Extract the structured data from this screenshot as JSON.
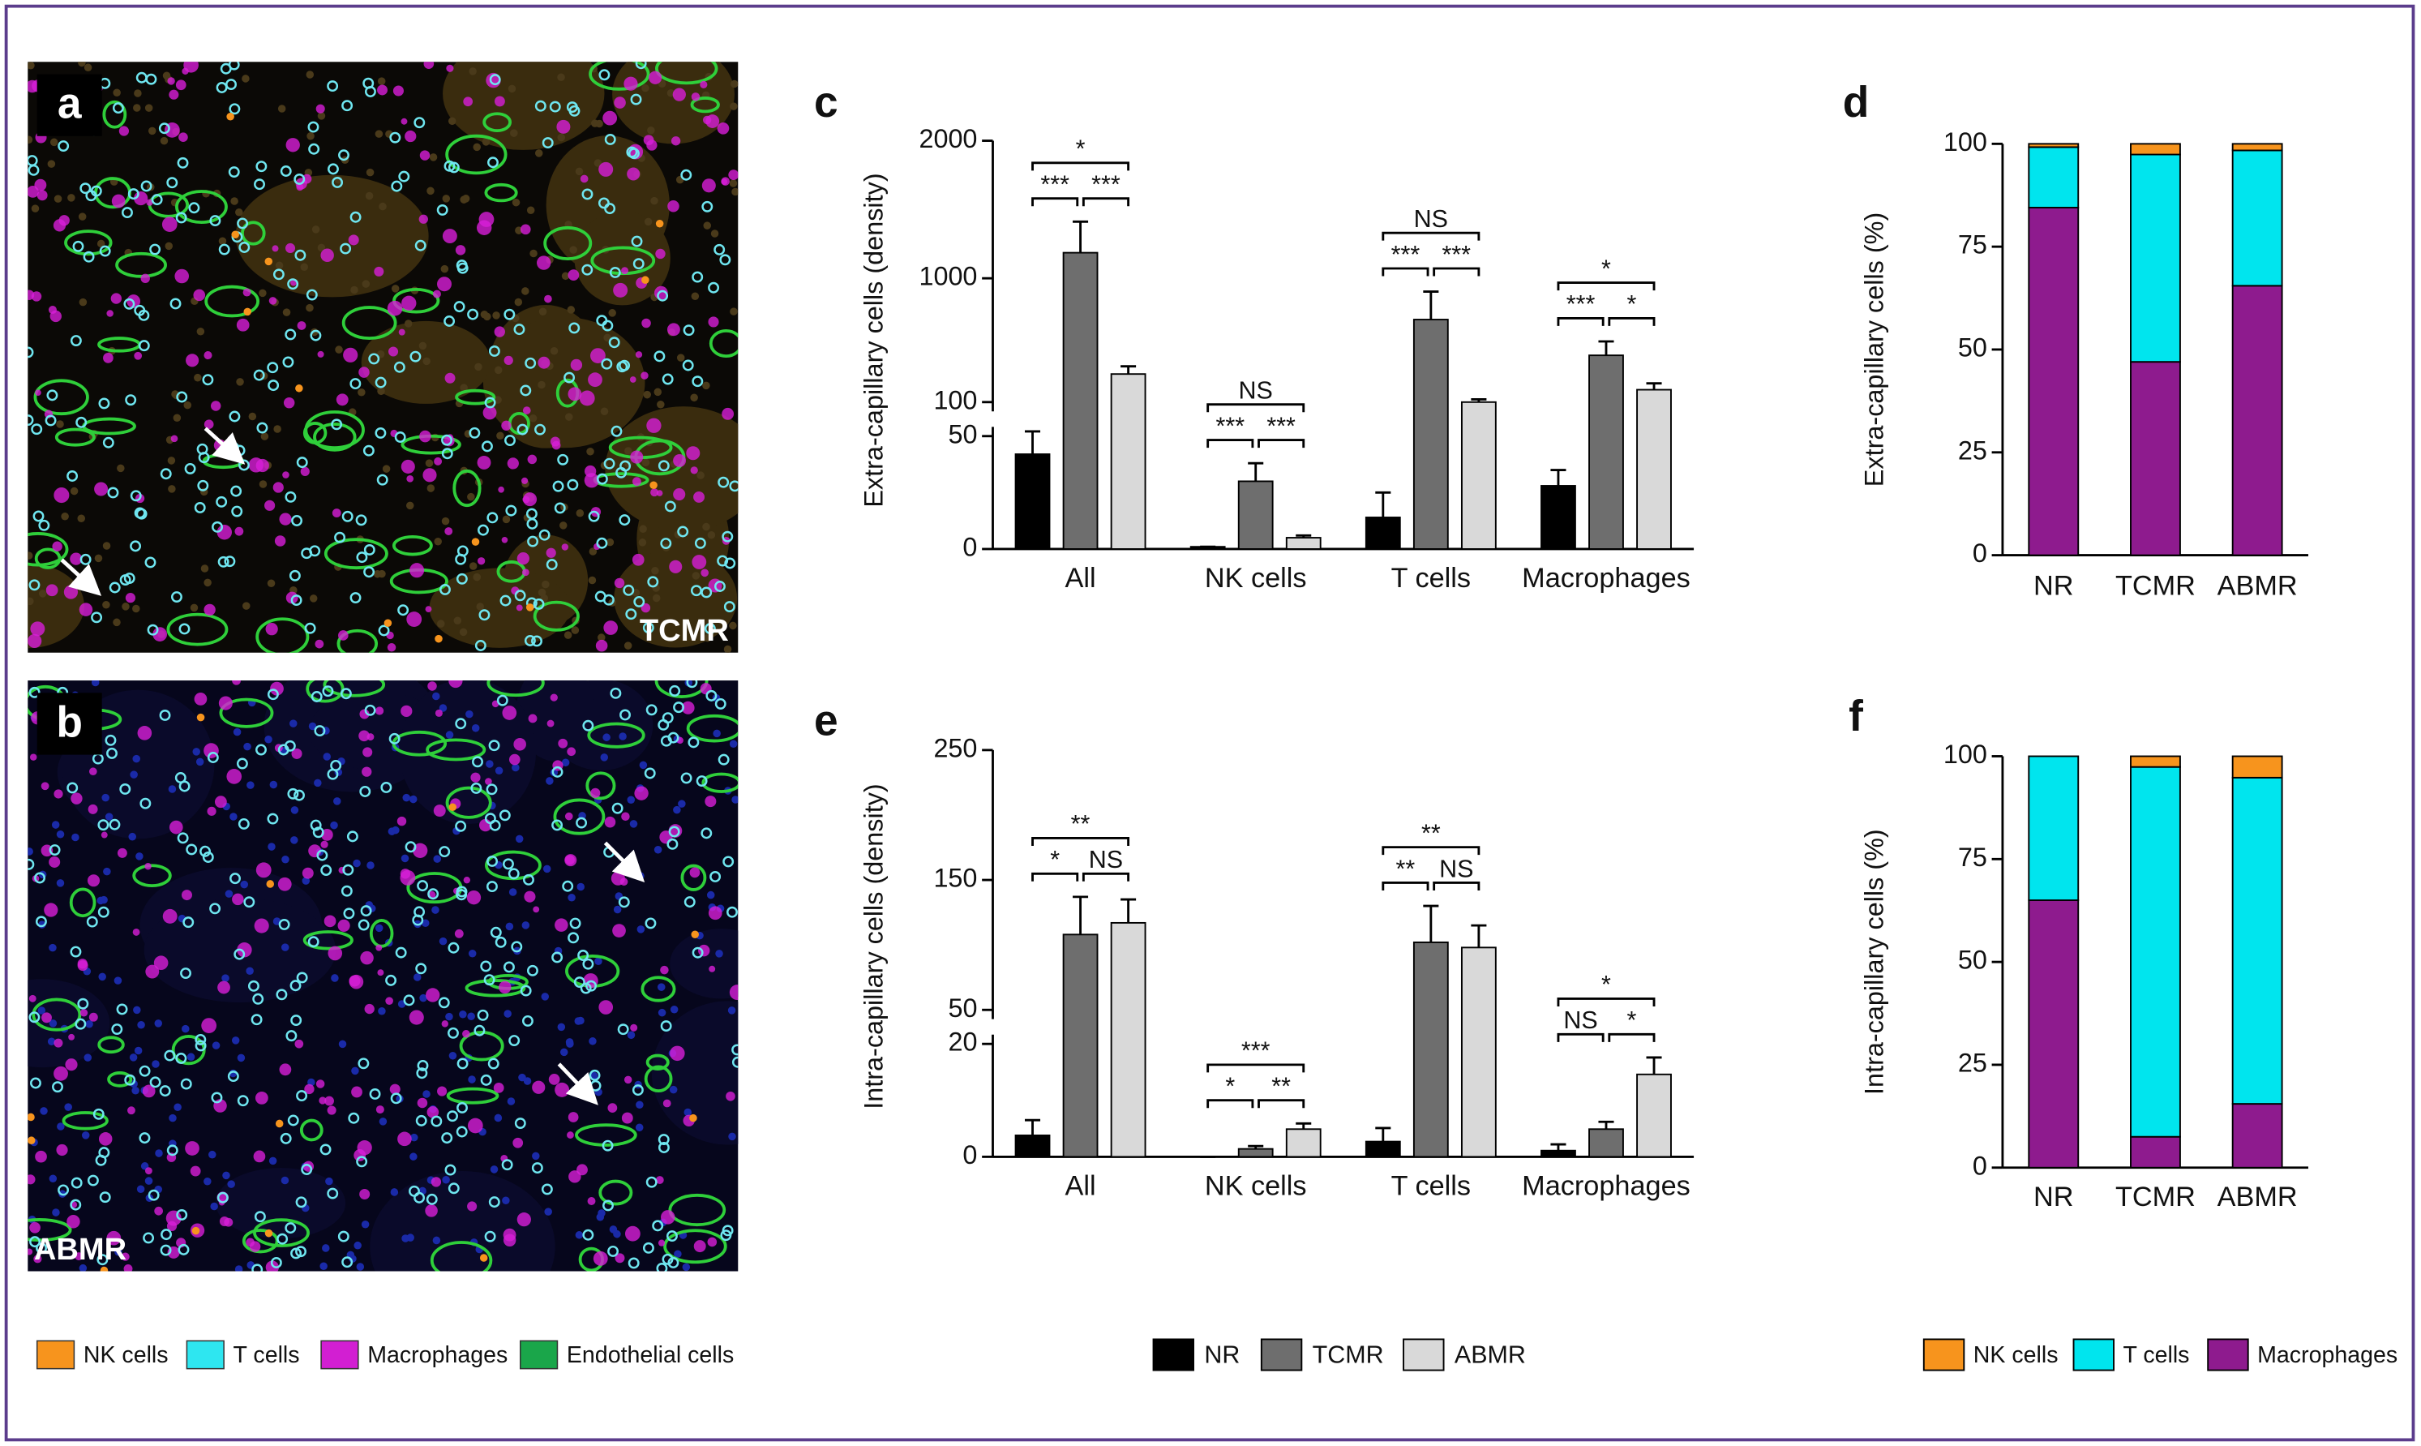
{
  "images": [
    {
      "label": "a",
      "tag": "TCMR"
    },
    {
      "label": "b",
      "tag": "ABMR"
    }
  ],
  "image_legend": [
    {
      "name": "NK cells",
      "color": "#f7941d"
    },
    {
      "name": "T cells",
      "color": "#2ee6f0"
    },
    {
      "name": "Macrophages",
      "color": "#d21fd2"
    },
    {
      "name": "Endothelial cells",
      "color": "#1aa64a"
    }
  ],
  "chart_data": [
    {
      "type": "bar",
      "panel": "c",
      "y_label": "Extra-capillary cells (density)",
      "categories": [
        "All",
        "NK cells",
        "T cells",
        "Macrophages"
      ],
      "ylim": [
        0,
        2000
      ],
      "ybreak": [
        50,
        100
      ],
      "yticks": [
        0,
        50,
        100,
        1000,
        2000
      ],
      "grid": false,
      "legend": true,
      "series": [
        {
          "name": "NR",
          "color": "#000000",
          "values": [
            42,
            1,
            14,
            28
          ],
          "errors": [
            15,
            0,
            11,
            7
          ]
        },
        {
          "name": "TCMR",
          "color": "#6e6e6e",
          "values": [
            1186,
            30,
            700,
            440
          ],
          "errors": [
            226,
            8,
            203,
            101
          ]
        },
        {
          "name": "ABMR",
          "color": "#d9d9d9",
          "values": [
            304,
            5,
            100,
            190
          ],
          "errors": [
            56,
            1,
            20,
            46
          ]
        }
      ],
      "significance": [
        {
          "category": "All",
          "pair": [
            "NR",
            "ABMR"
          ],
          "label": "*"
        },
        {
          "category": "All",
          "pair": [
            "NR",
            "TCMR"
          ],
          "label": "***"
        },
        {
          "category": "All",
          "pair": [
            "TCMR",
            "ABMR"
          ],
          "label": "***"
        },
        {
          "category": "NK cells",
          "pair": [
            "NR",
            "ABMR"
          ],
          "label": "NS"
        },
        {
          "category": "NK cells",
          "pair": [
            "NR",
            "TCMR"
          ],
          "label": "***"
        },
        {
          "category": "NK cells",
          "pair": [
            "TCMR",
            "ABMR"
          ],
          "label": "***"
        },
        {
          "category": "T cells",
          "pair": [
            "NR",
            "ABMR"
          ],
          "label": "NS"
        },
        {
          "category": "T cells",
          "pair": [
            "NR",
            "TCMR"
          ],
          "label": "***"
        },
        {
          "category": "T cells",
          "pair": [
            "TCMR",
            "ABMR"
          ],
          "label": "***"
        },
        {
          "category": "Macrophages",
          "pair": [
            "NR",
            "ABMR"
          ],
          "label": "*"
        },
        {
          "category": "Macrophages",
          "pair": [
            "NR",
            "TCMR"
          ],
          "label": "***"
        },
        {
          "category": "Macrophages",
          "pair": [
            "TCMR",
            "ABMR"
          ],
          "label": "*"
        }
      ]
    },
    {
      "type": "stacked_bar",
      "panel": "d",
      "y_label": "Extra-capillary cells (%)",
      "categories": [
        "NR",
        "TCMR",
        "ABMR"
      ],
      "ylim": [
        0,
        100
      ],
      "yticks": [
        0,
        25,
        50,
        75,
        100
      ],
      "grid": false,
      "legend": true,
      "series": [
        {
          "name": "NK cells",
          "color": "#f7941d",
          "values": [
            0.8,
            2.6,
            1.6
          ]
        },
        {
          "name": "T cells",
          "color": "#00e5ee",
          "values": [
            14.7,
            50.4,
            32.9
          ]
        },
        {
          "name": "Macrophages",
          "color": "#8e1b8e",
          "values": [
            84.5,
            47,
            65.5
          ]
        }
      ]
    },
    {
      "type": "bar",
      "panel": "e",
      "y_label": "Intra-capillary cells (density)",
      "categories": [
        "All",
        "NK cells",
        "T cells",
        "Macrophages"
      ],
      "ylim": [
        0,
        250
      ],
      "ybreak": [
        20,
        50
      ],
      "yticks": [
        0,
        20,
        50,
        150,
        250
      ],
      "grid": false,
      "legend": false,
      "series": [
        {
          "name": "NR",
          "color": "#000000",
          "values": [
            3.8,
            0,
            2.7,
            1.1
          ],
          "errors": [
            2.7,
            0,
            2.4,
            1.1
          ]
        },
        {
          "name": "TCMR",
          "color": "#6e6e6e",
          "values": [
            108,
            1.4,
            102,
            4.9
          ],
          "errors": [
            29,
            0.5,
            28,
            1.3
          ]
        },
        {
          "name": "ABMR",
          "color": "#d9d9d9",
          "values": [
            117,
            4.9,
            98,
            14.6
          ],
          "errors": [
            18,
            1,
            17,
            3
          ]
        }
      ],
      "significance": [
        {
          "category": "All",
          "pair": [
            "NR",
            "ABMR"
          ],
          "label": "**"
        },
        {
          "category": "All",
          "pair": [
            "NR",
            "TCMR"
          ],
          "label": "*"
        },
        {
          "category": "All",
          "pair": [
            "TCMR",
            "ABMR"
          ],
          "label": "NS"
        },
        {
          "category": "NK cells",
          "pair": [
            "NR",
            "ABMR"
          ],
          "label": "***"
        },
        {
          "category": "NK cells",
          "pair": [
            "NR",
            "TCMR"
          ],
          "label": "*"
        },
        {
          "category": "NK cells",
          "pair": [
            "TCMR",
            "ABMR"
          ],
          "label": "**"
        },
        {
          "category": "T cells",
          "pair": [
            "NR",
            "ABMR"
          ],
          "label": "**"
        },
        {
          "category": "T cells",
          "pair": [
            "NR",
            "TCMR"
          ],
          "label": "**"
        },
        {
          "category": "T cells",
          "pair": [
            "TCMR",
            "ABMR"
          ],
          "label": "NS"
        },
        {
          "category": "Macrophages",
          "pair": [
            "NR",
            "ABMR"
          ],
          "label": "*"
        },
        {
          "category": "Macrophages",
          "pair": [
            "NR",
            "TCMR"
          ],
          "label": "NS"
        },
        {
          "category": "Macrophages",
          "pair": [
            "TCMR",
            "ABMR"
          ],
          "label": "*"
        }
      ]
    },
    {
      "type": "stacked_bar",
      "panel": "f",
      "y_label": "Intra-capillary cells (%)",
      "categories": [
        "NR",
        "TCMR",
        "ABMR"
      ],
      "ylim": [
        0,
        100
      ],
      "yticks": [
        0,
        25,
        50,
        75,
        100
      ],
      "grid": false,
      "legend": false,
      "series": [
        {
          "name": "NK cells",
          "color": "#f7941d",
          "values": [
            0,
            2.6,
            5.2
          ]
        },
        {
          "name": "T cells",
          "color": "#00e5ee",
          "values": [
            35,
            89.9,
            79.3
          ]
        },
        {
          "name": "Macrophages",
          "color": "#8e1b8e",
          "values": [
            65,
            7.5,
            15.5
          ]
        }
      ]
    }
  ]
}
